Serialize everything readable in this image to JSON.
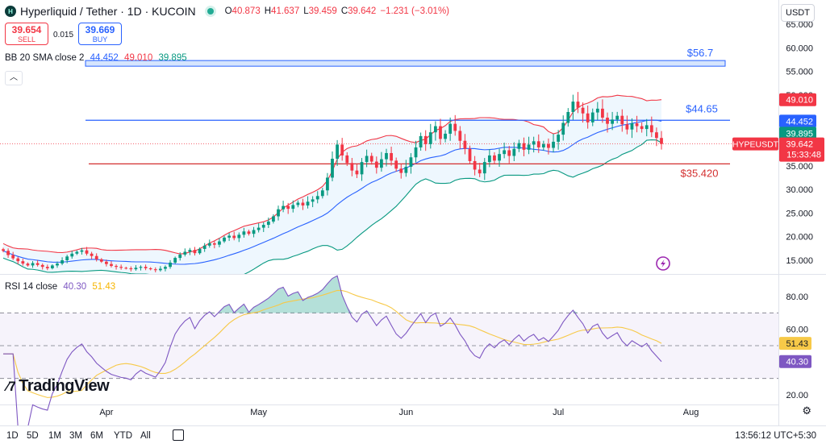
{
  "header": {
    "symbol_title": "Hyperliquid / Tether · 1D · KUCOIN",
    "ohlc": [
      {
        "key": "O",
        "value": "40.873"
      },
      {
        "key": "H",
        "value": "41.637"
      },
      {
        "key": "L",
        "value": "39.459"
      },
      {
        "key": "C",
        "value": "39.642"
      },
      {
        "key": "",
        "value": "−1.231 (−3.01%)"
      }
    ],
    "currency": "USDT"
  },
  "trade": {
    "sell_price": "39.654",
    "sell_label": "SELL",
    "spread": "0.015",
    "buy_price": "39.669",
    "buy_label": "BUY"
  },
  "legend": {
    "bb_label": "BB 20 SMA close 2",
    "bb_basis": "44.452",
    "bb_upper": "49.010",
    "bb_lower": "39.895",
    "rsi_label": "RSI 14 close",
    "rsi_value": "40.30",
    "rsi_ma": "51.43"
  },
  "colors": {
    "up": "#089981",
    "down": "#f23645",
    "bb_basis": "#2962ff",
    "bb_upper": "#f23645",
    "bb_lower": "#089981",
    "rsi": "#7e57c2",
    "rsi_ma": "#f7c948",
    "hline_blue": "#2962ff",
    "hline_red": "#d32f2f"
  },
  "chart_data": [
    {
      "type": "candlestick",
      "symbol": "HYPEUSDT",
      "ylim": [
        12,
        66
      ],
      "y_ticks": [
        "65.000",
        "60.000",
        "55.000",
        "50.000",
        "45.000",
        "40.000",
        "35.000",
        "30.000",
        "25.000",
        "20.000",
        "15.000"
      ],
      "x_ticks": [
        "Apr",
        "May",
        "Jun",
        "Jul",
        "Aug"
      ],
      "last_price": "39.642",
      "countdown": "15:33:48",
      "levels": [
        {
          "label": "$56.7",
          "value": 56.7
        },
        {
          "label": "$44.65",
          "value": 44.65
        },
        {
          "label": "$35.420",
          "value": 35.42
        }
      ],
      "closes": [
        17.0,
        16.1,
        15.4,
        14.8,
        14.3,
        13.9,
        14.4,
        14.0,
        13.6,
        13.3,
        13.9,
        14.3,
        15.0,
        15.8,
        16.4,
        16.8,
        17.1,
        16.4,
        15.9,
        15.2,
        14.7,
        14.2,
        13.8,
        13.6,
        13.4,
        13.3,
        13.1,
        13.4,
        13.6,
        13.3,
        13.1,
        12.9,
        13.2,
        13.6,
        14.5,
        15.5,
        16.2,
        16.8,
        17.2,
        16.5,
        17.4,
        18.1,
        18.6,
        18.3,
        19.0,
        19.8,
        20.2,
        19.7,
        20.4,
        21.1,
        20.6,
        21.4,
        21.9,
        22.5,
        23.2,
        24.3,
        25.8,
        26.5,
        25.9,
        26.7,
        27.2,
        26.6,
        27.4,
        27.9,
        28.6,
        29.8,
        32.5,
        36.5,
        39.5,
        37.2,
        35.6,
        34.0,
        33.2,
        35.8,
        37.1,
        35.9,
        34.6,
        36.4,
        37.7,
        36.1,
        34.4,
        33.5,
        34.8,
        36.8,
        38.9,
        41.3,
        39.6,
        42.1,
        43.4,
        40.7,
        41.8,
        43.9,
        42.4,
        40.3,
        38.6,
        36.0,
        34.2,
        33.4,
        35.8,
        37.2,
        36.1,
        37.5,
        38.3,
        37.1,
        38.6,
        39.8,
        38.4,
        39.5,
        40.2,
        38.9,
        39.6,
        38.8,
        40.1,
        41.6,
        44.1,
        46.4,
        48.6,
        47.3,
        46.1,
        44.2,
        46.3,
        47.1,
        45.2,
        43.9,
        44.8,
        45.6,
        43.8,
        42.7,
        44.0,
        43.4,
        42.8,
        43.6,
        42.1,
        40.9,
        39.642
      ],
      "bb_basis_end": 44.452,
      "bb_upper_end": 49.01,
      "bb_lower_end": 39.895
    },
    {
      "type": "line",
      "name": "RSI 14",
      "ylim": [
        15,
        92
      ],
      "y_ticks": [
        "80.00",
        "60.00",
        "40.00",
        "20.00"
      ],
      "bands": [
        70,
        50,
        30
      ],
      "rsi_end": 40.3,
      "rsi_ma_end": 51.43
    }
  ],
  "bottom": {
    "timeframes": [
      "1D",
      "5D",
      "1M",
      "3M",
      "6M",
      "YTD",
      "All"
    ],
    "clock": "13:56:12 UTC+5:30",
    "logo_text": "TradingView"
  }
}
